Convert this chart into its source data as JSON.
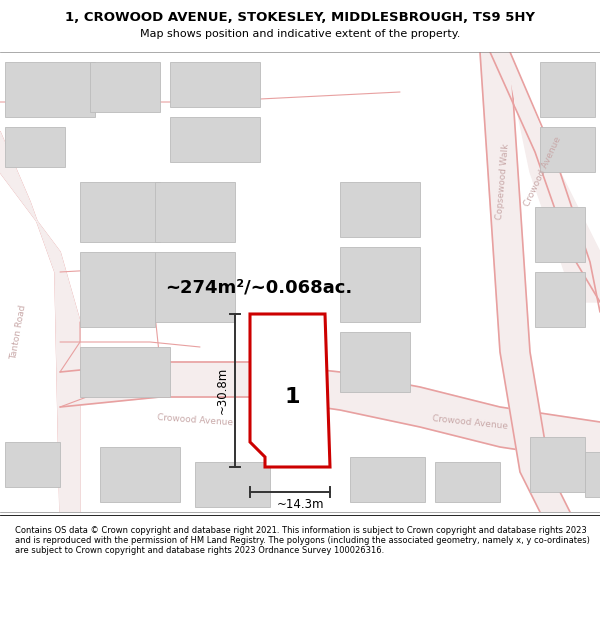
{
  "title": "1, CROWOOD AVENUE, STOKESLEY, MIDDLESBROUGH, TS9 5HY",
  "subtitle": "Map shows position and indicative extent of the property.",
  "footer": "Contains OS data © Crown copyright and database right 2021. This information is subject to Crown copyright and database rights 2023 and is reproduced with the permission of HM Land Registry. The polygons (including the associated geometry, namely x, y co-ordinates) are subject to Crown copyright and database rights 2023 Ordnance Survey 100026316.",
  "area_text": "~274m²/~0.068ac.",
  "width_label": "~14.3m",
  "height_label": "~30.8m",
  "plot_number": "1",
  "map_bg": "#f8f7f7",
  "road_line_color": "#e8a0a0",
  "building_color": "#d4d4d4",
  "building_edge_color": "#bbbbbb",
  "street_label_color": "#c8a8a8",
  "dim_color": "#333333",
  "plot_fill": "white",
  "plot_edge": "#cc0000"
}
